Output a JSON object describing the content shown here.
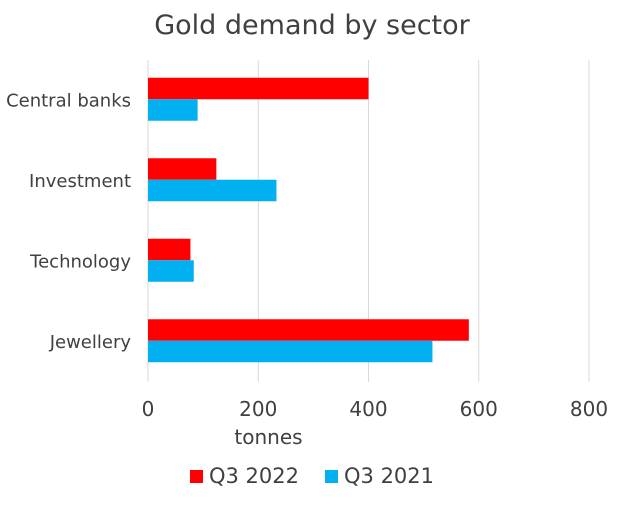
{
  "chart_data": {
    "type": "bar",
    "orientation": "horizontal",
    "title": "Gold demand by sector",
    "xlabel": "tonnes",
    "ylabel": "",
    "categories": [
      "Central banks",
      "Investment",
      "Technology",
      "Jewellery"
    ],
    "series": [
      {
        "name": "Q3 2022",
        "color": "#ff0000",
        "values": [
          400,
          124,
          77,
          582
        ]
      },
      {
        "name": "Q3 2021",
        "color": "#00b0f0",
        "values": [
          90,
          233,
          83,
          516
        ]
      }
    ],
    "xlim": [
      0,
      800
    ],
    "xticks": [
      "0",
      "200",
      "400",
      "600",
      "800"
    ],
    "grid": true,
    "legend_position": "bottom"
  }
}
